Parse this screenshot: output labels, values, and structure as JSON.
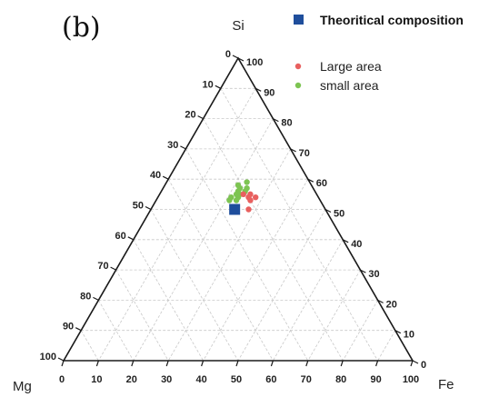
{
  "panel_label": "(b)",
  "chart_data": {
    "type": "ternary-scatter",
    "vertices": {
      "top": "Si",
      "left": "Mg",
      "right": "Fe"
    },
    "axis_ticks": [
      0,
      10,
      20,
      30,
      40,
      50,
      60,
      70,
      80,
      90,
      100
    ],
    "grid": true,
    "legend_position": "top-right",
    "series": [
      {
        "name": "Theoritical composition",
        "marker": "square",
        "color": "#1f4e9c",
        "points": [
          {
            "Si": 50,
            "Mg": 26,
            "Fe": 24
          }
        ]
      },
      {
        "name": "Large area",
        "marker": "circle",
        "color": "#e8605f",
        "points": [
          {
            "Si": 55,
            "Mg": 21,
            "Fe": 24
          },
          {
            "Si": 55,
            "Mg": 19,
            "Fe": 26
          },
          {
            "Si": 54,
            "Mg": 20,
            "Fe": 26
          },
          {
            "Si": 54,
            "Mg": 18,
            "Fe": 28
          },
          {
            "Si": 53,
            "Mg": 20,
            "Fe": 27
          },
          {
            "Si": 50,
            "Mg": 22,
            "Fe": 28
          }
        ]
      },
      {
        "name": "small area",
        "marker": "circle",
        "color": "#7dc452",
        "points": [
          {
            "Si": 59,
            "Mg": 18,
            "Fe": 23
          },
          {
            "Si": 58,
            "Mg": 21,
            "Fe": 21
          },
          {
            "Si": 57,
            "Mg": 21,
            "Fe": 22
          },
          {
            "Si": 57,
            "Mg": 19,
            "Fe": 24
          },
          {
            "Si": 56,
            "Mg": 20,
            "Fe": 24
          },
          {
            "Si": 56,
            "Mg": 22,
            "Fe": 22
          },
          {
            "Si": 55,
            "Mg": 22,
            "Fe": 23
          },
          {
            "Si": 55,
            "Mg": 23,
            "Fe": 22
          },
          {
            "Si": 54,
            "Mg": 23,
            "Fe": 23
          },
          {
            "Si": 54,
            "Mg": 25,
            "Fe": 21
          },
          {
            "Si": 53,
            "Mg": 24,
            "Fe": 23
          },
          {
            "Si": 53,
            "Mg": 26,
            "Fe": 21
          }
        ]
      }
    ]
  }
}
